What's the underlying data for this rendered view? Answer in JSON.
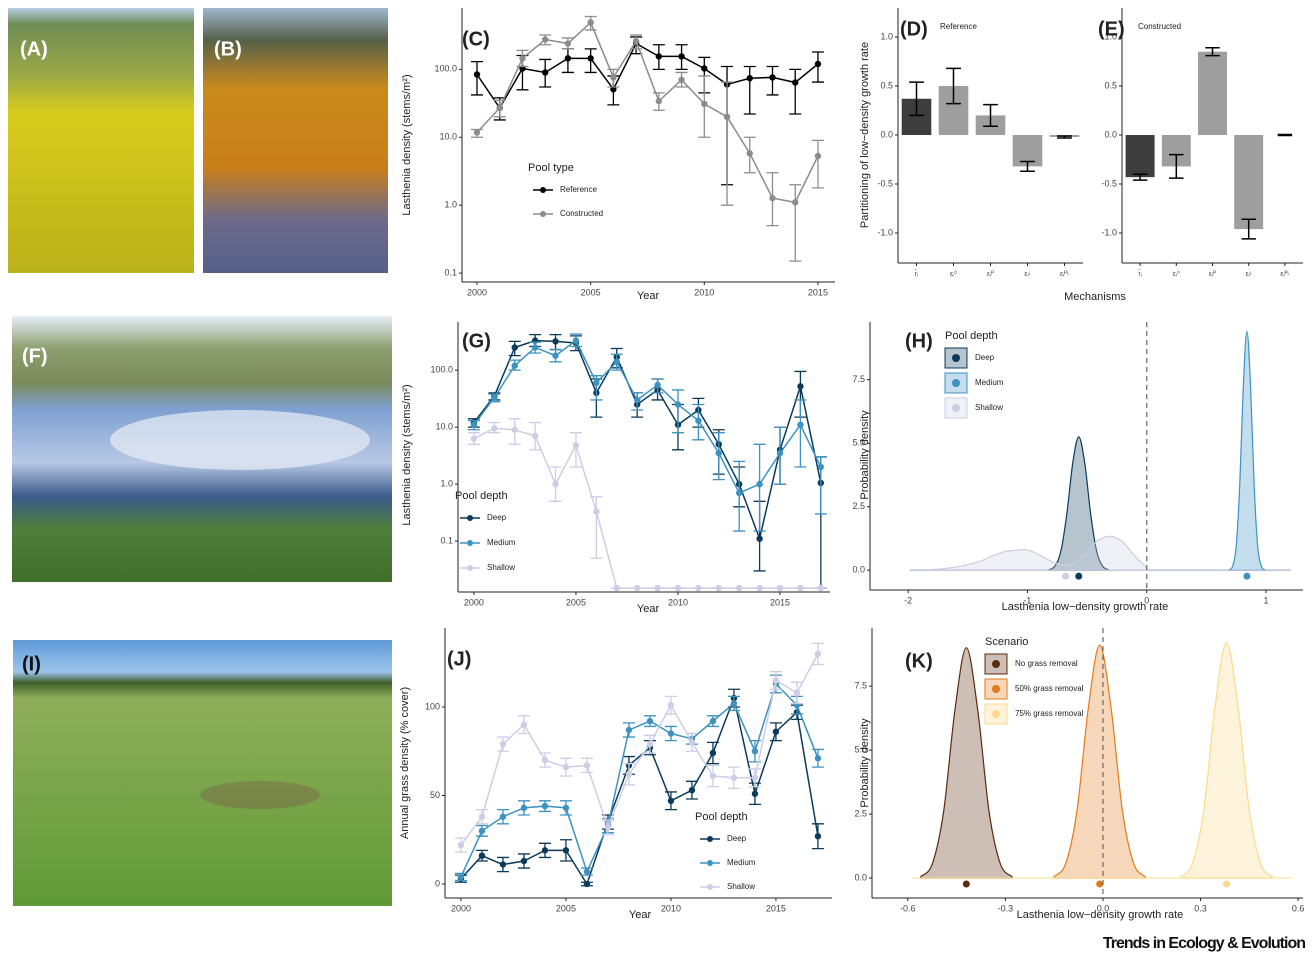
{
  "photo_labels": [
    "(A)",
    "(B)",
    "(F)",
    "(I)"
  ],
  "footer": "Trends in Ecology & Evolution",
  "chart_data": [
    {
      "type": "line",
      "panel_label": "(C)",
      "y_label": "Lasthenia density (stems/m²)",
      "x_label": "Year",
      "legend_title": "Pool type",
      "log_y": true,
      "xlim": [
        1999.34,
        2015.75
      ],
      "ylim": [
        0.074,
        800
      ],
      "xticks": [
        2000,
        2005,
        2010,
        2015
      ],
      "yticks": [
        0.1,
        {
          "value": 1,
          "label": "1.0"
        },
        {
          "value": 10,
          "label": "10.0"
        },
        {
          "value": 100,
          "label": "100.0"
        }
      ],
      "x": [
        2000,
        2001,
        2002,
        2003,
        2004,
        2005,
        2006,
        2007,
        2008,
        2009,
        2010,
        2011,
        2012,
        2013,
        2014,
        2015
      ],
      "series": [
        {
          "name": "Reference",
          "color": "#000000",
          "values": [
            84,
            27,
            103,
            90,
            145,
            145,
            51,
            240,
            155,
            155,
            103,
            60,
            74,
            76,
            64,
            120
          ],
          "lower": [
            42,
            18,
            50,
            55,
            90,
            90,
            30,
            170,
            100,
            100,
            45,
            2,
            22,
            42,
            22,
            65
          ],
          "upper": [
            130,
            38,
            160,
            140,
            200,
            200,
            80,
            300,
            230,
            230,
            150,
            110,
            110,
            110,
            100,
            180
          ]
        },
        {
          "name": "Constructed",
          "color": "#8c8c8c",
          "values": [
            11.8,
            27,
            145,
            275,
            240,
            490,
            76,
            260,
            34,
            70,
            31,
            20,
            5.8,
            1.27,
            1.1,
            5.3
          ],
          "lower": [
            10,
            20,
            110,
            230,
            200,
            380,
            55,
            200,
            25,
            55,
            10,
            1,
            3,
            0.5,
            0.15,
            1.8
          ],
          "upper": [
            13,
            35,
            190,
            320,
            290,
            600,
            100,
            320,
            45,
            90,
            80,
            65,
            10,
            3,
            2,
            9
          ]
        }
      ]
    },
    {
      "type": "bar",
      "panel_label": "(D)",
      "subtitle": "Reference",
      "y_label": "Partitioning of low−density growth rate",
      "x_label": "Mechanisms",
      "ylim": [
        -1.306,
        1.296
      ],
      "yticks": [
        {
          "value": -1,
          "label": "-1.0"
        },
        -0.5,
        {
          "value": 0,
          "label": "0.0"
        },
        0.5,
        {
          "value": 1,
          "label": "1.0"
        }
      ],
      "categories": [
        "r̄ᵢ",
        "εᵢ⁰",
        "εᵢᴾ",
        "εᵢᶫ",
        "εᵢᴾᶫ"
      ],
      "values": [
        0.37,
        0.5,
        0.2,
        -0.32,
        -0.02
      ],
      "errors": [
        0.17,
        0.18,
        0.11,
        0.05,
        0.01
      ],
      "colors": [
        "#3d3d3d",
        "#9e9e9e",
        "#9e9e9e",
        "#9e9e9e",
        "#9e9e9e"
      ]
    },
    {
      "type": "bar",
      "panel_label": "(E)",
      "subtitle": "Constructed",
      "ylim": [
        -1.306,
        1.296
      ],
      "yticks": [
        {
          "value": -1,
          "label": "-1.0"
        },
        -0.5,
        {
          "value": 0,
          "label": "0.0"
        },
        0.5,
        {
          "value": 1,
          "label": "1.0"
        }
      ],
      "categories": [
        "r̄ᵢ",
        "εᵢ⁰",
        "εᵢᴾ",
        "εᵢᶫ",
        "εᵢᴾᶫ"
      ],
      "values": [
        -0.43,
        -0.32,
        0.85,
        -0.96,
        0.0
      ],
      "errors": [
        0.03,
        0.12,
        0.04,
        0.1,
        0.005
      ],
      "colors": [
        "#3d3d3d",
        "#9e9e9e",
        "#9e9e9e",
        "#9e9e9e",
        "#9e9e9e"
      ]
    },
    {
      "type": "line",
      "panel_label": "(G)",
      "y_label": "Lasthenia density (stems/m²)",
      "x_label": "Year",
      "legend_title": "Pool depth",
      "log_y": true,
      "xlim": [
        1999.22,
        2017.45
      ],
      "ylim": [
        0.0128,
        700
      ],
      "xticks": [
        2000,
        2005,
        2010,
        2015
      ],
      "yticks": [
        0.1,
        {
          "value": 1,
          "label": "1.0"
        },
        {
          "value": 10,
          "label": "10.0"
        },
        {
          "value": 100,
          "label": "100.0"
        }
      ],
      "x": [
        2000,
        2001,
        2002,
        2003,
        2004,
        2005,
        2006,
        2007,
        2008,
        2009,
        2010,
        2011,
        2012,
        2013,
        2014,
        2015,
        2016,
        2017
      ],
      "series": [
        {
          "name": "Deep",
          "color": "#0b3a5a",
          "values": [
            12,
            35,
            250,
            330,
            320,
            300,
            40,
            170,
            25,
            45,
            11,
            20,
            5,
            1.0,
            0.11,
            4,
            52,
            1.05
          ],
          "lower": [
            10,
            30,
            180,
            260,
            230,
            220,
            15,
            110,
            15,
            30,
            4,
            10,
            1.5,
            0.4,
            0.03,
            1,
            15,
            0.015
          ],
          "upper": [
            14,
            40,
            320,
            420,
            420,
            400,
            70,
            240,
            40,
            70,
            25,
            32,
            9,
            2,
            0.5,
            10,
            95,
            3
          ]
        },
        {
          "name": "Medium",
          "color": "#3d92c2",
          "values": [
            11,
            33,
            120,
            250,
            180,
            330,
            60,
            140,
            30,
            55,
            25,
            13,
            3.5,
            0.7,
            1.0,
            3.5,
            11,
            2
          ],
          "lower": [
            9,
            28,
            100,
            200,
            140,
            260,
            30,
            100,
            20,
            40,
            8,
            6,
            1.2,
            0.15,
            0.15,
            1,
            2,
            0.3
          ],
          "upper": [
            13,
            38,
            150,
            310,
            230,
            430,
            80,
            190,
            40,
            70,
            45,
            25,
            8,
            2.5,
            5,
            10,
            30,
            3
          ]
        },
        {
          "name": "Shallow",
          "color": "#cdcde6",
          "values": [
            6.3,
            9.5,
            9,
            7,
            1.0,
            4.8,
            0.33,
            0.015,
            0.015,
            0.015,
            0.015,
            0.015,
            0.015,
            0.015,
            0.015,
            0.015,
            0.015,
            0.015
          ],
          "lower": [
            5,
            8,
            5,
            4,
            0.5,
            2,
            0.05,
            0.015,
            0.015,
            0.015,
            0.015,
            0.015,
            0.015,
            0.015,
            0.015,
            0.015,
            0.015,
            0.015
          ],
          "upper": [
            8,
            12,
            14,
            12,
            2,
            8,
            0.6,
            0.015,
            0.015,
            0.015,
            0.015,
            0.015,
            0.015,
            0.015,
            0.015,
            0.015,
            0.015,
            0.015
          ]
        }
      ]
    },
    {
      "type": "density",
      "panel_label": "(H)",
      "y_label": "Probability density",
      "x_label": "Lasthenia low−density growth rate",
      "legend_title": "Pool depth",
      "xlim": [
        -2.32,
        1.31
      ],
      "ylim": [
        -0.78,
        9.77
      ],
      "xticks": [
        -2,
        -1,
        0,
        1
      ],
      "yticks": [
        {
          "value": 0,
          "label": "0.0"
        },
        2.5,
        {
          "value": 5,
          "label": "5.0"
        },
        7.5
      ],
      "vline": 0,
      "series": [
        {
          "name": "Deep",
          "color": "#0b3a5a",
          "mean": -0.57,
          "x": [
            -0.82,
            -0.77,
            -0.72,
            -0.67,
            -0.62,
            -0.57,
            -0.52,
            -0.47,
            -0.42,
            -0.37,
            -0.32
          ],
          "values": [
            0.02,
            0.16,
            0.75,
            2.21,
            4.23,
            5.25,
            4.23,
            2.21,
            0.75,
            0.16,
            0.02
          ]
        },
        {
          "name": "Medium",
          "color": "#3d92c2",
          "mean": 0.84,
          "x": [
            0.69,
            0.72,
            0.75,
            0.78,
            0.81,
            0.84,
            0.87,
            0.9,
            0.93,
            0.96,
            0.99
          ],
          "values": [
            0.02,
            0.16,
            0.94,
            3.39,
            7.28,
            9.4,
            7.28,
            3.39,
            0.94,
            0.16,
            0.02
          ]
        },
        {
          "name": "Shallow",
          "color": "#cdcde6",
          "mean": -0.68,
          "x": [
            -1.8,
            -1.6,
            -1.4,
            -1.3,
            -1.2,
            -1.1,
            -1.0,
            -0.9,
            -0.8,
            -0.7,
            -0.6,
            -0.5,
            -0.4,
            -0.3,
            -0.2,
            -0.1,
            0.0
          ],
          "values": [
            0.02,
            0.12,
            0.35,
            0.55,
            0.72,
            0.78,
            0.8,
            0.6,
            0.35,
            0.2,
            0.3,
            0.75,
            1.2,
            1.33,
            1.1,
            0.55,
            0.1
          ]
        }
      ]
    },
    {
      "type": "line",
      "panel_label": "(J)",
      "y_label": "Annual grass density (% cover)",
      "x_label": "Year",
      "legend_title": "Pool depth",
      "xlim": [
        1999.24,
        2017.67
      ],
      "ylim": [
        -7.9,
        144.6
      ],
      "xticks": [
        2000,
        2005,
        2010,
        2015
      ],
      "yticks": [
        0,
        50,
        100
      ],
      "x": [
        2000,
        2001,
        2002,
        2003,
        2004,
        2005,
        2006,
        2007,
        2008,
        2009,
        2010,
        2011,
        2012,
        2013,
        2014,
        2015,
        2016,
        2017
      ],
      "series": [
        {
          "name": "Deep",
          "color": "#0b3a5a",
          "values": [
            3,
            16,
            11,
            13,
            19,
            19,
            0,
            35,
            67,
            77,
            47,
            53,
            74,
            105,
            51,
            86,
            97,
            27
          ],
          "errors": [
            2,
            3,
            4,
            4,
            4,
            6,
            1,
            4,
            5,
            4,
            5,
            5,
            6,
            5,
            6,
            5,
            4,
            7
          ]
        },
        {
          "name": "Medium",
          "color": "#3d92c2",
          "values": [
            4,
            30,
            38,
            43,
            44,
            43,
            7,
            33,
            87,
            92,
            85,
            82,
            92,
            102,
            75,
            113,
            101,
            71
          ],
          "errors": [
            2,
            3,
            4,
            4,
            3,
            4,
            2,
            4,
            4,
            3,
            4,
            3,
            3,
            4,
            6,
            5,
            5,
            5
          ]
        },
        {
          "name": "Shallow",
          "color": "#cdcde6",
          "values": [
            22,
            38,
            79,
            90,
            70,
            66,
            67,
            32,
            62,
            79,
            101,
            80,
            61,
            60,
            60,
            115,
            108,
            130
          ],
          "errors": [
            4,
            4,
            4,
            5,
            4,
            5,
            4,
            4,
            6,
            5,
            5,
            5,
            6,
            6,
            5,
            5,
            6,
            6
          ]
        }
      ]
    },
    {
      "type": "density",
      "panel_label": "(K)",
      "y_label": "Probability density",
      "x_label": "Lasthenia low−density growth rate",
      "legend_title": "Scenario",
      "xlim": [
        -0.71,
        0.615
      ],
      "ylim": [
        -0.78,
        9.77
      ],
      "xticks": [
        -0.6,
        -0.3,
        {
          "value": 0,
          "label": "0.0"
        },
        0.3,
        0.6
      ],
      "yticks": [
        {
          "value": 0,
          "label": "0.0"
        },
        2.5,
        {
          "value": 5,
          "label": "5.0"
        },
        7.5
      ],
      "vline": 0,
      "series": [
        {
          "name": "No grass removal",
          "color": "#5c2a0e",
          "mean": -0.42,
          "x": [
            -0.56,
            -0.525,
            -0.49,
            -0.455,
            -0.42,
            -0.385,
            -0.35,
            -0.315,
            -0.28
          ],
          "values": [
            0.06,
            0.54,
            2.58,
            6.57,
            9.0,
            6.57,
            2.58,
            0.54,
            0.06
          ]
        },
        {
          "name": "50% grass removal",
          "color": "#e07b1a",
          "mean": -0.01,
          "x": [
            -0.15,
            -0.115,
            -0.08,
            -0.045,
            -0.01,
            0.025,
            0.06,
            0.095,
            0.13
          ],
          "values": [
            0.06,
            0.55,
            2.61,
            6.64,
            9.1,
            6.64,
            2.61,
            0.55,
            0.06
          ]
        },
        {
          "name": "75% grass removal",
          "color": "#fdd98a",
          "mean": 0.38,
          "x": [
            0.24,
            0.275,
            0.31,
            0.345,
            0.38,
            0.415,
            0.45,
            0.485,
            0.52
          ],
          "values": [
            0.06,
            0.55,
            2.64,
            6.72,
            9.2,
            6.72,
            2.64,
            0.55,
            0.06
          ]
        }
      ]
    }
  ]
}
